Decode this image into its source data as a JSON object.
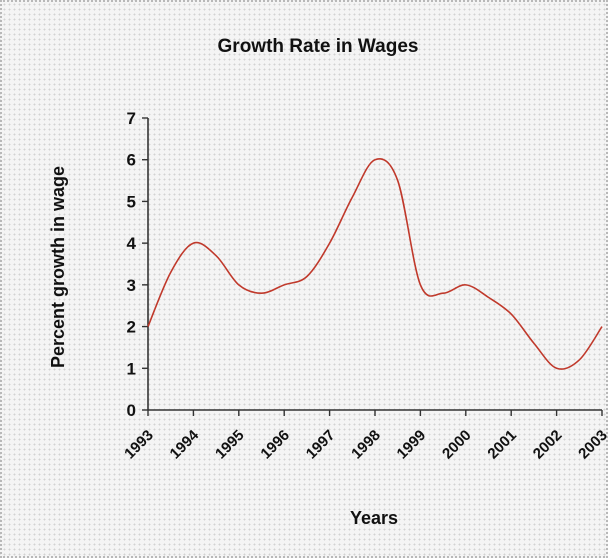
{
  "chart_data": {
    "type": "line",
    "title": "Growth Rate in Wages",
    "xlabel": "Years",
    "ylabel": "Percent growth in wage",
    "ylim": [
      0,
      7
    ],
    "xlim": [
      1993,
      2003
    ],
    "y_ticks": [
      "0",
      "1",
      "2",
      "3",
      "4",
      "5",
      "6",
      "7"
    ],
    "x_ticks": [
      "1993",
      "1994",
      "1995",
      "1996",
      "1997",
      "1998",
      "1999",
      "2000",
      "2001",
      "2002",
      "2003"
    ],
    "grid": false,
    "series": [
      {
        "color": "#c0392b",
        "x": [
          1993,
          1993.5,
          1994,
          1994.5,
          1995,
          1995.5,
          1996,
          1996.5,
          1997,
          1997.5,
          1998,
          1998.5,
          1999,
          1999.5,
          2000,
          2000.5,
          2001,
          2001.5,
          2002,
          2002.5,
          2003
        ],
        "y": [
          2.0,
          3.3,
          4.0,
          3.7,
          3.0,
          2.8,
          3.0,
          3.2,
          4.0,
          5.1,
          6.0,
          5.5,
          3.0,
          2.8,
          3.0,
          2.7,
          2.3,
          1.6,
          1.0,
          1.2,
          2.0
        ]
      }
    ]
  }
}
